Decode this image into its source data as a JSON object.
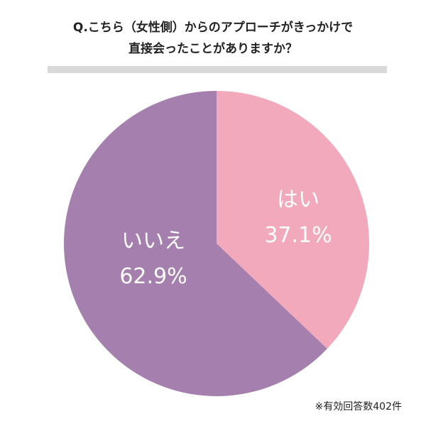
{
  "title": {
    "line1": "Q.こちら（女性側）からのアプローチがきっかけで",
    "line2": "直接会ったことがありますか？"
  },
  "colors": {
    "rule": "#d9d9d9",
    "hai": "#f1a9bb",
    "iie": "#a57fad",
    "label_text": "#ffffff",
    "text": "#222222"
  },
  "chart_data": {
    "type": "pie",
    "title": "Q.こちら（女性側）からのアプローチがきっかけで直接会ったことがありますか？",
    "start": "12 o'clock",
    "direction": "clockwise",
    "slices": [
      {
        "label": "はい",
        "value": 37.1,
        "value_label": "37.1%",
        "color": "#f1a9bb"
      },
      {
        "label": "いいえ",
        "value": 62.9,
        "value_label": "62.9%",
        "color": "#a57fad"
      }
    ],
    "legend": "none",
    "note": "※有効回答数402件"
  },
  "footnote": "※有効回答数402件"
}
